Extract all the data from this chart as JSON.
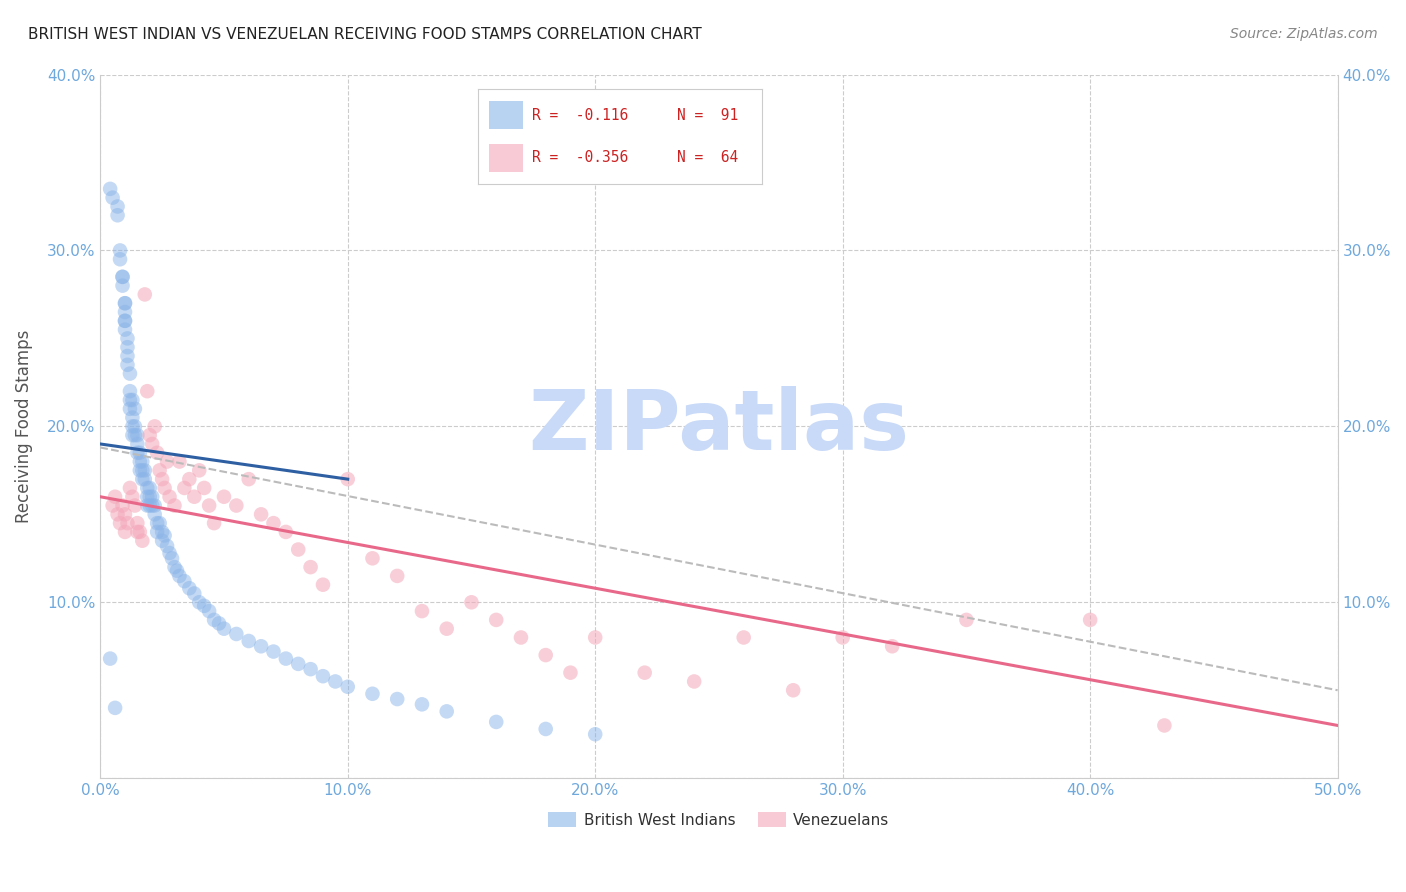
{
  "title": "BRITISH WEST INDIAN VS VENEZUELAN RECEIVING FOOD STAMPS CORRELATION CHART",
  "source": "Source: ZipAtlas.com",
  "ylabel": "Receiving Food Stamps",
  "xlim": [
    0.0,
    0.5
  ],
  "ylim": [
    0.0,
    0.4
  ],
  "xticks": [
    0.0,
    0.1,
    0.2,
    0.3,
    0.4,
    0.5
  ],
  "yticks": [
    0.0,
    0.1,
    0.2,
    0.3,
    0.4
  ],
  "xtick_labels": [
    "0.0%",
    "10.0%",
    "20.0%",
    "30.0%",
    "40.0%",
    "50.0%"
  ],
  "ytick_labels": [
    "",
    "10.0%",
    "20.0%",
    "30.0%",
    "40.0%"
  ],
  "right_ytick_labels": [
    "10.0%",
    "20.0%",
    "30.0%",
    "40.0%"
  ],
  "blue_color": "#8ab4e8",
  "pink_color": "#f4a7b9",
  "blue_line_color": "#2e5fa3",
  "pink_line_color": "#e8688a",
  "dashed_line_color": "#bbbbbb",
  "tick_color": "#6fa8dc",
  "legend_r1": "R =  -0.116",
  "legend_n1": "N =  91",
  "legend_r2": "R =  -0.356",
  "legend_n2": "N =  64",
  "legend_r_color": "#cc2222",
  "legend_n_color": "#cc2222",
  "watermark": "ZIPatlas",
  "watermark_color": "#c9daf8",
  "blue_scatter_x": [
    0.004,
    0.005,
    0.007,
    0.007,
    0.008,
    0.008,
    0.009,
    0.009,
    0.009,
    0.01,
    0.01,
    0.01,
    0.01,
    0.01,
    0.01,
    0.011,
    0.011,
    0.011,
    0.011,
    0.012,
    0.012,
    0.012,
    0.012,
    0.013,
    0.013,
    0.013,
    0.013,
    0.014,
    0.014,
    0.014,
    0.015,
    0.015,
    0.015,
    0.016,
    0.016,
    0.016,
    0.017,
    0.017,
    0.017,
    0.018,
    0.018,
    0.019,
    0.019,
    0.019,
    0.02,
    0.02,
    0.02,
    0.021,
    0.021,
    0.022,
    0.022,
    0.023,
    0.023,
    0.024,
    0.025,
    0.025,
    0.026,
    0.027,
    0.028,
    0.029,
    0.03,
    0.031,
    0.032,
    0.034,
    0.036,
    0.038,
    0.04,
    0.042,
    0.044,
    0.046,
    0.048,
    0.05,
    0.055,
    0.06,
    0.065,
    0.07,
    0.075,
    0.08,
    0.085,
    0.09,
    0.095,
    0.1,
    0.11,
    0.12,
    0.13,
    0.14,
    0.16,
    0.18,
    0.2,
    0.004,
    0.006
  ],
  "blue_scatter_y": [
    0.335,
    0.33,
    0.325,
    0.32,
    0.295,
    0.3,
    0.285,
    0.28,
    0.285,
    0.26,
    0.27,
    0.265,
    0.26,
    0.255,
    0.27,
    0.25,
    0.245,
    0.24,
    0.235,
    0.22,
    0.215,
    0.23,
    0.21,
    0.215,
    0.205,
    0.2,
    0.195,
    0.21,
    0.2,
    0.195,
    0.195,
    0.19,
    0.185,
    0.185,
    0.18,
    0.175,
    0.18,
    0.175,
    0.17,
    0.175,
    0.17,
    0.165,
    0.16,
    0.155,
    0.165,
    0.16,
    0.155,
    0.16,
    0.155,
    0.155,
    0.15,
    0.145,
    0.14,
    0.145,
    0.14,
    0.135,
    0.138,
    0.132,
    0.128,
    0.125,
    0.12,
    0.118,
    0.115,
    0.112,
    0.108,
    0.105,
    0.1,
    0.098,
    0.095,
    0.09,
    0.088,
    0.085,
    0.082,
    0.078,
    0.075,
    0.072,
    0.068,
    0.065,
    0.062,
    0.058,
    0.055,
    0.052,
    0.048,
    0.045,
    0.042,
    0.038,
    0.032,
    0.028,
    0.025,
    0.068,
    0.04
  ],
  "pink_scatter_x": [
    0.005,
    0.006,
    0.007,
    0.008,
    0.009,
    0.01,
    0.01,
    0.011,
    0.012,
    0.013,
    0.014,
    0.015,
    0.015,
    0.016,
    0.017,
    0.018,
    0.019,
    0.02,
    0.021,
    0.022,
    0.023,
    0.024,
    0.025,
    0.026,
    0.027,
    0.028,
    0.03,
    0.032,
    0.034,
    0.036,
    0.038,
    0.04,
    0.042,
    0.044,
    0.046,
    0.05,
    0.055,
    0.06,
    0.065,
    0.07,
    0.075,
    0.08,
    0.085,
    0.09,
    0.1,
    0.11,
    0.12,
    0.13,
    0.14,
    0.15,
    0.16,
    0.17,
    0.18,
    0.19,
    0.2,
    0.22,
    0.24,
    0.26,
    0.28,
    0.3,
    0.32,
    0.35,
    0.4,
    0.43
  ],
  "pink_scatter_y": [
    0.155,
    0.16,
    0.15,
    0.145,
    0.155,
    0.15,
    0.14,
    0.145,
    0.165,
    0.16,
    0.155,
    0.145,
    0.14,
    0.14,
    0.135,
    0.275,
    0.22,
    0.195,
    0.19,
    0.2,
    0.185,
    0.175,
    0.17,
    0.165,
    0.18,
    0.16,
    0.155,
    0.18,
    0.165,
    0.17,
    0.16,
    0.175,
    0.165,
    0.155,
    0.145,
    0.16,
    0.155,
    0.17,
    0.15,
    0.145,
    0.14,
    0.13,
    0.12,
    0.11,
    0.17,
    0.125,
    0.115,
    0.095,
    0.085,
    0.1,
    0.09,
    0.08,
    0.07,
    0.06,
    0.08,
    0.06,
    0.055,
    0.08,
    0.05,
    0.08,
    0.075,
    0.09,
    0.09,
    0.03
  ],
  "blue_trendline_x": [
    0.0,
    0.1
  ],
  "blue_trendline_y": [
    0.19,
    0.17
  ],
  "pink_trendline_x": [
    0.0,
    0.5
  ],
  "pink_trendline_y": [
    0.16,
    0.03
  ],
  "dashed_trendline_x": [
    0.0,
    0.5
  ],
  "dashed_trendline_y": [
    0.188,
    0.05
  ],
  "figsize": [
    14.06,
    8.92
  ],
  "dpi": 100
}
